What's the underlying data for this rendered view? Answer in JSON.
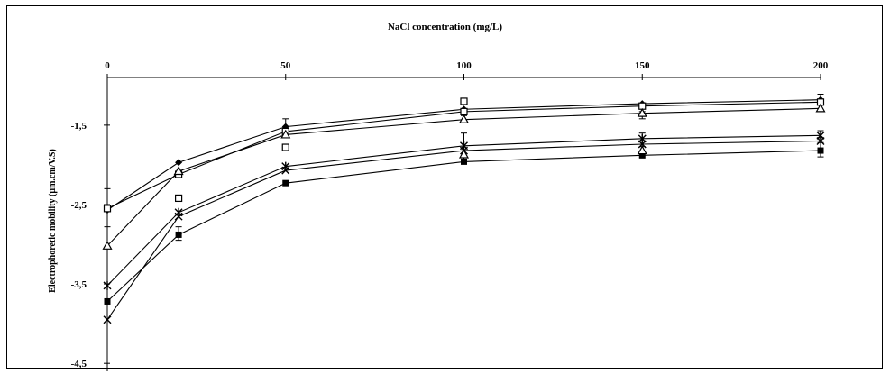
{
  "chart_data": {
    "type": "line",
    "title": "NaCl concentration (mg/L)",
    "xlabel": "NaCl concentration (mg/L)",
    "ylabel": "Electrophoretic mobility (µm.cm/V.S)",
    "x": [
      0,
      20,
      50,
      100,
      150,
      200
    ],
    "x_ticks": [
      "0",
      "50",
      "100",
      "150",
      "200"
    ],
    "y_ticks": [
      "-1,5",
      "-2,5",
      "-3,5",
      "-4,5"
    ],
    "xlim": [
      0,
      200
    ],
    "ylim": [
      -4.6,
      -0.9
    ],
    "x_axis_position": "top",
    "grid": false,
    "series": [
      {
        "marker": "diamond-filled",
        "values": [
          -2.57,
          -1.97,
          -1.52,
          -1.3,
          -1.23,
          -1.18
        ]
      },
      {
        "marker": "square-open",
        "values": [
          -2.55,
          -2.12,
          -1.58,
          -1.33,
          -1.26,
          -1.21
        ]
      },
      {
        "marker": "triangle-open",
        "values": [
          -3.02,
          -2.08,
          -1.62,
          -1.43,
          -1.35,
          -1.29
        ]
      },
      {
        "marker": "star",
        "values": [
          -3.52,
          -2.6,
          -2.02,
          -1.76,
          -1.67,
          -1.63
        ]
      },
      {
        "marker": "cross",
        "values": [
          -3.95,
          -2.65,
          -2.07,
          -1.82,
          -1.74,
          -1.7
        ]
      },
      {
        "marker": "square-filled",
        "values": [
          -3.72,
          -2.88,
          -2.23,
          -1.96,
          -1.88,
          -1.82
        ]
      }
    ],
    "scatter_markers": [
      {
        "marker": "square-open",
        "x": 20,
        "y": -2.42
      },
      {
        "marker": "square-open",
        "x": 50,
        "y": -1.78
      },
      {
        "marker": "square-open",
        "x": 100,
        "y": -1.2
      },
      {
        "marker": "triangle-open",
        "x": 100,
        "y": -1.87
      },
      {
        "marker": "triangle-open",
        "x": 150,
        "y": -1.82
      }
    ],
    "error_bars": [
      {
        "x": 0,
        "low": -2.78,
        "high": -2.3
      },
      {
        "x": 20,
        "low": -2.95,
        "high": -2.78
      },
      {
        "x": 50,
        "low": -1.56,
        "high": -1.42
      },
      {
        "x": 100,
        "low": -1.95,
        "high": -1.6
      },
      {
        "x": 100,
        "low": -1.46,
        "high": -1.38
      },
      {
        "x": 150,
        "low": -1.42,
        "high": -1.33
      },
      {
        "x": 150,
        "low": -1.77,
        "high": -1.6
      },
      {
        "x": 200,
        "low": -1.9,
        "high": -1.72
      },
      {
        "x": 200,
        "low": -1.66,
        "high": -1.57
      },
      {
        "x": 200,
        "low": -1.2,
        "high": -1.11
      }
    ]
  }
}
